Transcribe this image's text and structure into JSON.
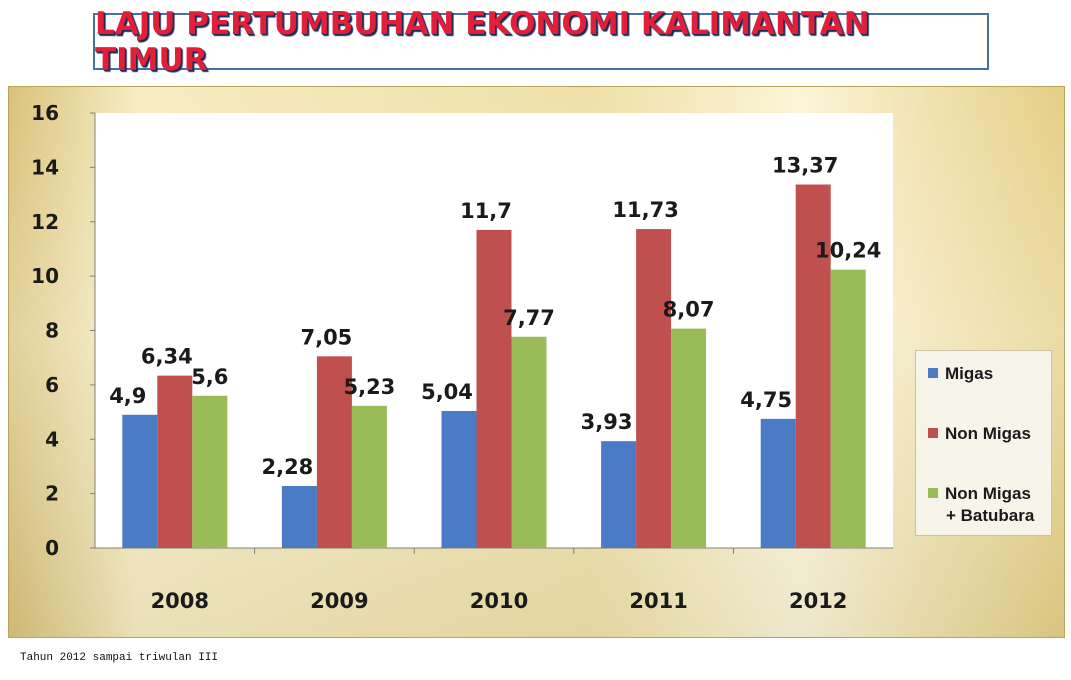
{
  "title": "LAJU PERTUMBUHAN EKONOMI KALIMANTAN TIMUR",
  "footnote": "Tahun 2012 sampai triwulan III",
  "colors": {
    "migas": "#4a7bc4",
    "non_migas": "#c0504d",
    "non_migas_batubara": "#9bbb59",
    "title": "#e0203a"
  },
  "chart_data": {
    "type": "bar",
    "title": "LAJU PERTUMBUHAN EKONOMI KALIMANTAN TIMUR",
    "categories": [
      "2008",
      "2009",
      "2010",
      "2011",
      "2012"
    ],
    "series": [
      {
        "name": "Migas",
        "values": [
          4.9,
          2.28,
          5.04,
          3.93,
          4.75
        ],
        "labels": [
          "4,9",
          "2,28",
          "5,04",
          "3,93",
          "4,75"
        ]
      },
      {
        "name": "Non Migas",
        "values": [
          6.34,
          7.05,
          11.7,
          11.73,
          13.37
        ],
        "labels": [
          "6,34",
          "7,05",
          "11,7",
          "11,73",
          "13,37"
        ]
      },
      {
        "name": "Non Migas + Batubara",
        "values": [
          5.6,
          5.23,
          7.77,
          8.07,
          10.24
        ],
        "labels": [
          "5,6",
          "5,23",
          "7,77",
          "8,07",
          "10,24"
        ]
      }
    ],
    "ylim": [
      0,
      16
    ],
    "yticks": [
      0,
      2,
      4,
      6,
      8,
      10,
      12,
      14,
      16
    ],
    "xlabel": "",
    "ylabel": "",
    "grid": false,
    "legend_position": "right"
  },
  "legend": {
    "migas": "Migas",
    "non_migas": "Non Migas",
    "non_migas_batubara_line1": "Non Migas",
    "non_migas_batubara_line2": "+ Batubara"
  }
}
